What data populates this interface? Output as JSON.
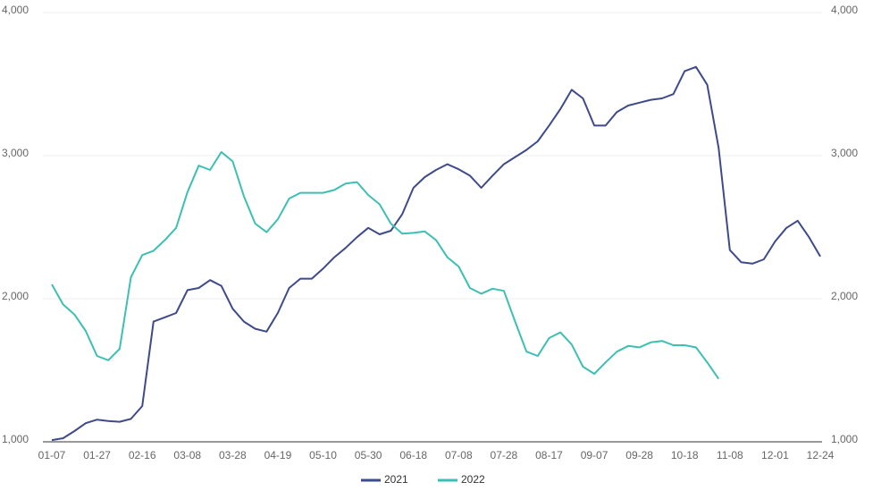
{
  "chart_data": {
    "type": "line",
    "categories": [
      "01-07",
      null,
      null,
      null,
      "01-27",
      null,
      null,
      null,
      "02-16",
      null,
      null,
      null,
      "03-08",
      null,
      null,
      null,
      "03-28",
      null,
      null,
      null,
      "04-19",
      null,
      null,
      null,
      "05-10",
      null,
      null,
      null,
      "05-30",
      null,
      null,
      null,
      "06-18",
      null,
      null,
      null,
      "07-08",
      null,
      null,
      null,
      "07-28",
      null,
      null,
      null,
      "08-17",
      null,
      null,
      null,
      "09-07",
      null,
      null,
      null,
      "09-28",
      null,
      null,
      null,
      "10-18",
      null,
      null,
      null,
      "11-08",
      null,
      null,
      null,
      "12-01",
      null,
      null,
      null,
      "12-24"
    ],
    "series": [
      {
        "name": "2021",
        "color": "#3e4a89",
        "values": [
          1012,
          1025,
          1075,
          1130,
          1155,
          1145,
          1140,
          1160,
          1250,
          1840,
          1870,
          1900,
          2060,
          2075,
          2130,
          2090,
          1930,
          1840,
          1790,
          1770,
          1900,
          2075,
          2140,
          2140,
          2210,
          2290,
          2355,
          2430,
          2495,
          2450,
          2475,
          2590,
          2775,
          2850,
          2900,
          2940,
          2905,
          2860,
          2775,
          2860,
          2940,
          2990,
          3040,
          3100,
          3210,
          3325,
          3460,
          3400,
          3210,
          3210,
          3305,
          3350,
          3370,
          3390,
          3400,
          3430,
          3590,
          3620,
          3495,
          3055,
          2340,
          2255,
          2245,
          2275,
          2400,
          2495,
          2545,
          2430,
          2295
        ]
      },
      {
        "name": "2022",
        "color": "#3dbfb4",
        "values": [
          2100,
          1960,
          1890,
          1775,
          1600,
          1570,
          1650,
          2150,
          2305,
          2335,
          2410,
          2495,
          2745,
          2930,
          2900,
          3025,
          2960,
          2715,
          2525,
          2465,
          2555,
          2700,
          2740,
          2740,
          2740,
          2760,
          2805,
          2815,
          2725,
          2660,
          2525,
          2455,
          2460,
          2470,
          2410,
          2290,
          2225,
          2075,
          2035,
          2070,
          2055,
          1840,
          1630,
          1600,
          1725,
          1765,
          1680,
          1525,
          1475,
          1555,
          1630,
          1670,
          1660,
          1695,
          1705,
          1675,
          1675,
          1660,
          1555,
          1440,
          null,
          null,
          null,
          null,
          null,
          null,
          null,
          null,
          null
        ]
      }
    ],
    "ylim": [
      1000,
      4000
    ],
    "yticks": [
      {
        "value": 1000,
        "label": "1,000"
      },
      {
        "value": 2000,
        "label": "2,000"
      },
      {
        "value": 3000,
        "label": "3,000"
      },
      {
        "value": 4000,
        "label": "4,000"
      }
    ],
    "y2lim": [
      1000,
      4000
    ],
    "y2ticks": [
      {
        "value": 1000,
        "label": "1,000"
      },
      {
        "value": 2000,
        "label": "2,000"
      },
      {
        "value": 3000,
        "label": "3,000"
      },
      {
        "value": 4000,
        "label": "4,000"
      }
    ],
    "grid": true,
    "legend": "bottom"
  }
}
